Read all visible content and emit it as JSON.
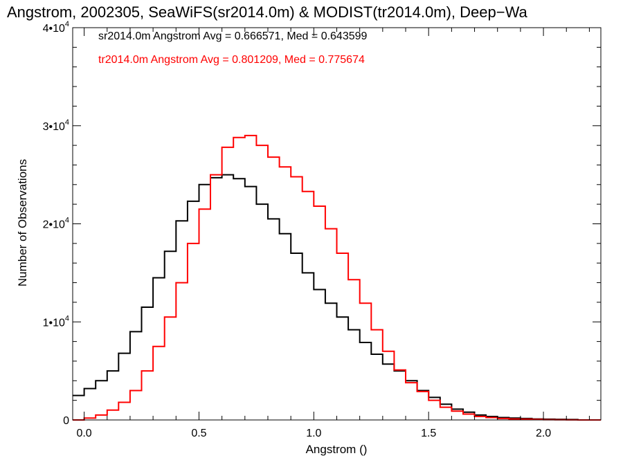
{
  "chart_data": {
    "type": "line",
    "step": true,
    "title": "Angstrom, 2002305, SeaWiFS(sr2014.0m) & MODIST(tr2014.0m), Deep−Wa",
    "xlabel": "Angstrom ()",
    "ylabel": "Number of Observations",
    "xlim": [
      -0.05,
      2.25
    ],
    "ylim": [
      0,
      40000
    ],
    "x_ticks": [
      0.0,
      0.5,
      1.0,
      1.5,
      2.0
    ],
    "x_tick_labels": [
      "0.0",
      "0.5",
      "1.0",
      "1.5",
      "2.0"
    ],
    "y_ticks": [
      0,
      10000,
      20000,
      30000,
      40000
    ],
    "y_tick_labels": [
      {
        "base": "0",
        "exp": ""
      },
      {
        "base": "1•10",
        "exp": "4"
      },
      {
        "base": "2•10",
        "exp": "4"
      },
      {
        "base": "3•10",
        "exp": "4"
      },
      {
        "base": "4•10",
        "exp": "4"
      }
    ],
    "grid": false,
    "annotations": [
      {
        "text": "sr2014.0m Angstrom Avg = 0.666571, Med = 0.643599",
        "color": "#000000"
      },
      {
        "text": "tr2014.0m Angstrom Avg = 0.801209, Med = 0.775674",
        "color": "#ff0000"
      }
    ],
    "series": [
      {
        "color": "#000000",
        "x": [
          -0.05,
          0.0,
          0.05,
          0.1,
          0.15,
          0.2,
          0.25,
          0.3,
          0.35,
          0.4,
          0.45,
          0.5,
          0.55,
          0.6,
          0.65,
          0.7,
          0.75,
          0.8,
          0.85,
          0.9,
          0.95,
          1.0,
          1.05,
          1.1,
          1.15,
          1.2,
          1.25,
          1.3,
          1.35,
          1.4,
          1.45,
          1.5,
          1.55,
          1.6,
          1.65,
          1.7,
          1.75,
          1.8,
          1.85,
          1.9,
          1.95,
          2.0,
          2.05,
          2.1,
          2.15
        ],
        "y": [
          2500,
          3200,
          4000,
          5000,
          6800,
          9000,
          11500,
          14500,
          17200,
          20300,
          22300,
          24000,
          24700,
          25000,
          24600,
          23800,
          22000,
          20500,
          19000,
          17000,
          15000,
          13300,
          11900,
          10500,
          9200,
          7900,
          6700,
          5700,
          5000,
          4000,
          3000,
          2300,
          1600,
          1100,
          800,
          500,
          350,
          250,
          200,
          150,
          100,
          80,
          60,
          40,
          0
        ]
      },
      {
        "color": "#ff0000",
        "x": [
          -0.05,
          0.0,
          0.05,
          0.1,
          0.15,
          0.2,
          0.25,
          0.3,
          0.35,
          0.4,
          0.45,
          0.5,
          0.55,
          0.6,
          0.65,
          0.7,
          0.75,
          0.8,
          0.85,
          0.9,
          0.95,
          1.0,
          1.05,
          1.1,
          1.15,
          1.2,
          1.25,
          1.3,
          1.35,
          1.4,
          1.45,
          1.5,
          1.55,
          1.6,
          1.65,
          1.7,
          1.75,
          1.8,
          1.85,
          1.9,
          1.95,
          2.0,
          2.05,
          2.1,
          2.15,
          2.2
        ],
        "y": [
          0,
          200,
          500,
          1000,
          1800,
          3000,
          5000,
          7500,
          10500,
          14000,
          18000,
          21500,
          25000,
          27800,
          28800,
          29000,
          28000,
          26800,
          25800,
          24800,
          23300,
          21800,
          19500,
          17000,
          14300,
          11900,
          9200,
          7000,
          5100,
          3800,
          2900,
          2000,
          1300,
          900,
          600,
          350,
          250,
          150,
          100,
          80,
          50,
          30,
          20,
          10,
          0,
          0
        ]
      }
    ]
  }
}
